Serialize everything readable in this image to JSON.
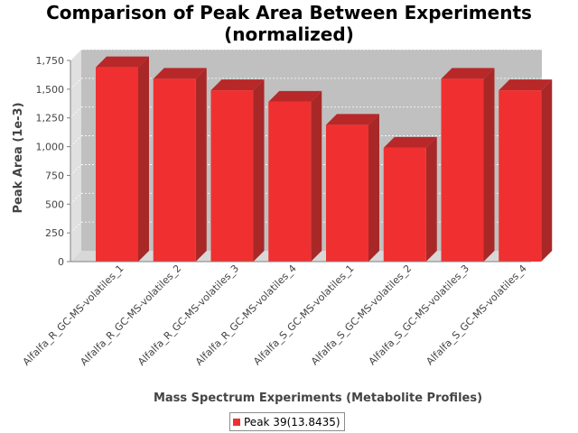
{
  "chart_data": {
    "type": "bar",
    "title_lines": [
      "Comparison of Peak Area Between Experiments",
      "(normalized)"
    ],
    "xlabel": "Mass Spectrum Experiments (Metabolite Profiles)",
    "ylabel": "Peak Area (1e-3)",
    "categories": [
      "Alfalfa_R_GC-MS-volatiles_1",
      "Alfalfa_R_GC-MS-volatiles_2",
      "Alfalfa_R_GC-MS-volatiles_3",
      "Alfalfa_R_GC-MS-volatiles_4",
      "Alfalfa_S_GC-MS-volatiles_1",
      "Alfalfa_S_GC-MS-volatiles_2",
      "Alfalfa_S_GC-MS-volatiles_3",
      "Alfalfa_S_GC-MS-volatiles_4"
    ],
    "series": [
      {
        "name": "Peak 39(13.8435)",
        "values": [
          1690,
          1590,
          1490,
          1390,
          1190,
          990,
          1590,
          1490
        ],
        "color": "#f03030"
      }
    ],
    "ylim": [
      0,
      1750
    ],
    "yticks": [
      0,
      250,
      500,
      750,
      1000,
      1250,
      1500,
      1750
    ],
    "ytick_labels": [
      "0",
      "250",
      "500",
      "750",
      "1,000",
      "1,250",
      "1,500",
      "1,750"
    ],
    "grid": true,
    "legend_position": "bottom",
    "plot_background": "#c0c0c0"
  }
}
